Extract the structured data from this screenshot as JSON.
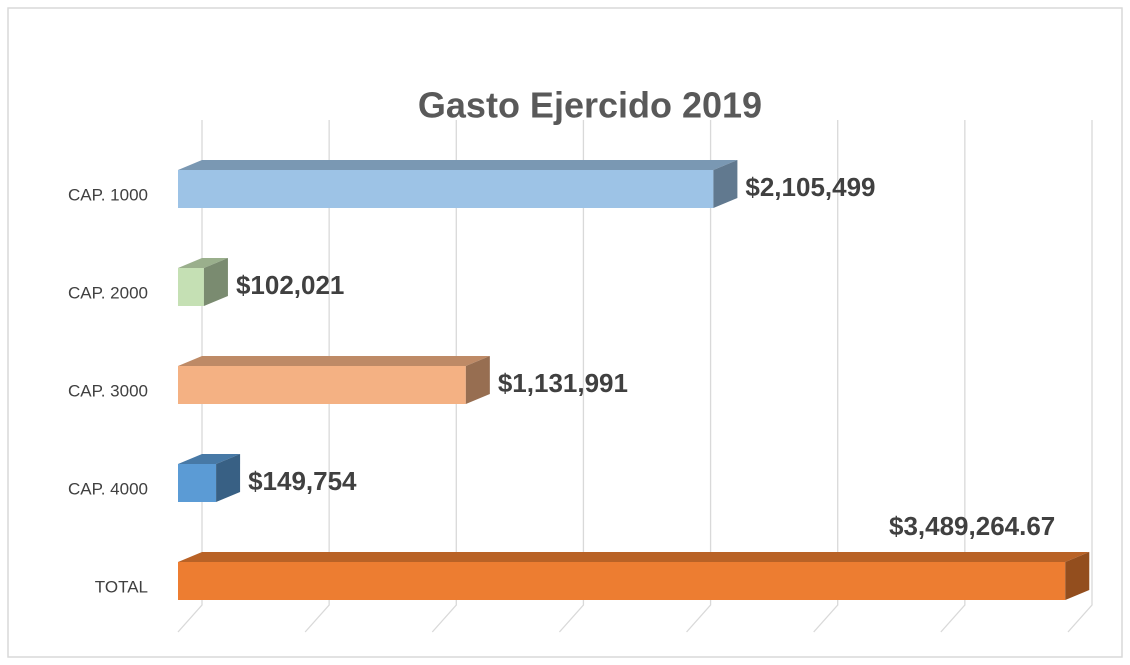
{
  "chart_data": {
    "type": "bar3d-horizontal",
    "title": "Gasto Ejercido 2019",
    "categories": [
      "CAP. 1000",
      "CAP. 2000",
      "CAP. 3000",
      "CAP. 4000",
      "TOTAL"
    ],
    "values": [
      2105499,
      102021,
      1131991,
      149754,
      3489264.67
    ],
    "value_labels": [
      "$2,105,499",
      "$102,021",
      "$1,131,991",
      "$149,754",
      "$3,489,264.67"
    ],
    "colors": [
      "#9dc3e6",
      "#c5e0b4",
      "#f4b183",
      "#5b9bd5",
      "#ed7d31"
    ],
    "xlim": [
      0,
      3500000
    ],
    "xticks": [
      0,
      500000,
      1000000,
      1500000,
      2000000,
      2500000,
      3000000,
      3500000
    ],
    "grid": true
  }
}
